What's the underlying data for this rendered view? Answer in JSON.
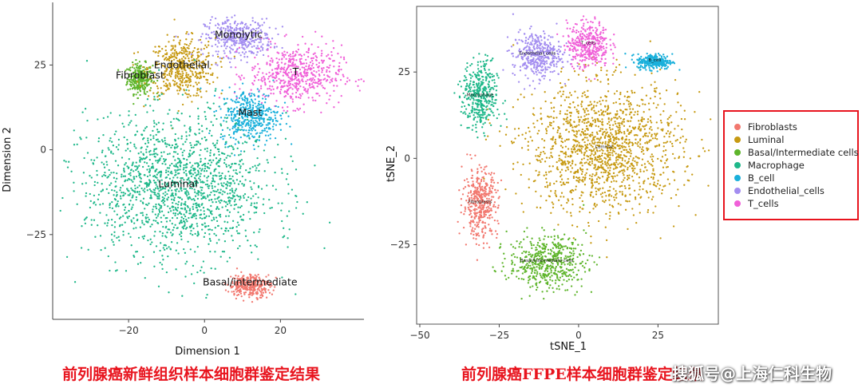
{
  "colors": {
    "fibroblast": "#f2786f",
    "luminal": "#c79a13",
    "basal": "#5eb52b",
    "macrophage": "#1fb88a",
    "b_cell": "#1ab0db",
    "endothelial": "#a38df0",
    "t_cells": "#f060d8",
    "caption": "#e8141e"
  },
  "captions": {
    "left": "前列腺癌新鲜组织样本细胞群鉴定结果",
    "right": "前列腺癌FFPE样本细胞群鉴定结果"
  },
  "watermark": "搜狐号@上海仁科生物",
  "chart_data": [
    {
      "type": "scatter",
      "title": "",
      "xlabel": "Dimension 1",
      "ylabel": "Dimension 2",
      "xlim": [
        -40,
        42
      ],
      "ylim": [
        -50,
        43
      ],
      "xticks": [
        -20,
        0,
        20
      ],
      "yticks": [
        -25,
        0,
        25
      ],
      "grid": false,
      "legend": "none",
      "clusters": [
        {
          "label": "Fibroblast",
          "color": "#5eb52b",
          "center": [
            -17,
            21
          ],
          "spread": [
            3,
            4
          ]
        },
        {
          "label": "Endothelial",
          "color": "#c79a13",
          "center": [
            -6,
            24
          ],
          "spread": [
            8,
            8
          ]
        },
        {
          "label": "Monolytic",
          "color": "#a38df0",
          "center": [
            9,
            33
          ],
          "spread": [
            8,
            5
          ]
        },
        {
          "label": "T",
          "color": "#f060d8",
          "center": [
            24,
            22
          ],
          "spread": [
            11,
            8
          ]
        },
        {
          "label": "Mast",
          "color": "#1ab0db",
          "center": [
            12,
            10
          ],
          "spread": [
            7,
            7
          ]
        },
        {
          "label": "Luminal",
          "color": "#1fb88a",
          "center": [
            -7,
            -11
          ],
          "spread": [
            22,
            19
          ]
        },
        {
          "label": "Basal/intermediate",
          "color": "#f2786f",
          "center": [
            12,
            -40
          ],
          "spread": [
            5,
            3
          ]
        }
      ]
    },
    {
      "type": "scatter",
      "title": "",
      "xlabel": "tSNE_1",
      "ylabel": "tSNE_2",
      "xlim": [
        -51,
        44
      ],
      "ylim": [
        -48,
        44
      ],
      "xticks": [
        -50,
        -25,
        0,
        25
      ],
      "yticks": [
        -25,
        0,
        25
      ],
      "grid": false,
      "legend": "right",
      "legend_entries": [
        "Fibroblasts",
        "Luminal",
        "Basal/Intermediate cells",
        "Macrophage",
        "B_cell",
        "Endothelial_cells",
        "T_cells"
      ],
      "clusters": [
        {
          "label": "Fibroblasts",
          "color": "#f2786f",
          "center": [
            -31,
            -13
          ],
          "spread": [
            5,
            9
          ]
        },
        {
          "label": "Luminal",
          "color": "#c79a13",
          "center": [
            8,
            3
          ],
          "spread": [
            22,
            17
          ]
        },
        {
          "label": "Basal/Intermediate cells",
          "color": "#5eb52b",
          "center": [
            -10,
            -30
          ],
          "spread": [
            11,
            7
          ]
        },
        {
          "label": "Macrophage",
          "color": "#1fb88a",
          "center": [
            -31,
            18
          ],
          "spread": [
            5,
            9
          ]
        },
        {
          "label": "B_cell",
          "color": "#1ab0db",
          "center": [
            24,
            28
          ],
          "spread": [
            5,
            2
          ]
        },
        {
          "label": "Endothelial_cells",
          "color": "#a38df0",
          "center": [
            -13,
            30
          ],
          "spread": [
            7,
            6
          ]
        },
        {
          "label": "T_cells",
          "color": "#f060d8",
          "center": [
            3,
            33
          ],
          "spread": [
            6,
            6
          ]
        }
      ]
    }
  ]
}
